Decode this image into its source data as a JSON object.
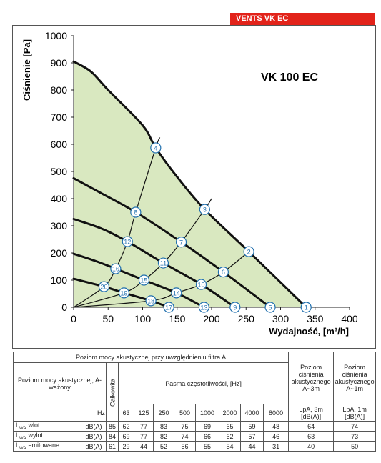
{
  "chart_data": {
    "type": "line",
    "brand": "VENTS VK EC",
    "model": "VK 100 EC",
    "ylabel": "Ciśnienie [Pa]",
    "xlabel": "Wydajność, [m³/h]",
    "xlim": [
      0,
      400
    ],
    "xticks": [
      0,
      50,
      100,
      150,
      200,
      250,
      300,
      350,
      400
    ],
    "ylim": [
      0,
      1000
    ],
    "yticks": [
      0,
      100,
      200,
      300,
      400,
      500,
      600,
      700,
      800,
      900,
      1000
    ],
    "grid": false,
    "color": "#111111",
    "fill_color": "#d9e8c0",
    "marker_color": "#1f6fae",
    "series": [
      {
        "x": [
          0,
          25,
          50,
          100,
          119,
          150,
          190,
          254,
          337
        ],
        "y": [
          905,
          868,
          800,
          670,
          587,
          480,
          360,
          205,
          0
        ]
      },
      {
        "x": [
          0,
          40,
          90,
          156,
          217,
          285
        ],
        "y": [
          475,
          420,
          350,
          240,
          130,
          0
        ]
      },
      {
        "x": [
          0,
          40,
          78,
          130,
          185,
          234
        ],
        "y": [
          325,
          290,
          242,
          163,
          84,
          0
        ]
      },
      {
        "x": [
          0,
          30,
          61,
          102,
          149,
          189
        ],
        "y": [
          197,
          172,
          142,
          100,
          53,
          0
        ]
      },
      {
        "x": [
          0,
          44,
          73,
          112,
          138
        ],
        "y": [
          105,
          76,
          53,
          24,
          0
        ]
      }
    ],
    "system_curves": [
      {
        "x": [
          0,
          44,
          61,
          78,
          90,
          119,
          125
        ],
        "y": [
          0,
          76,
          142,
          242,
          350,
          587,
          625
        ]
      },
      {
        "x": [
          0,
          73,
          102,
          130,
          156,
          190,
          200
        ],
        "y": [
          0,
          53,
          100,
          163,
          240,
          360,
          400
        ]
      },
      {
        "x": [
          0,
          112,
          149,
          185,
          217,
          254,
          258
        ],
        "y": [
          0,
          24,
          53,
          84,
          130,
          205,
          215
        ]
      }
    ],
    "points": [
      {
        "label": "1",
        "x": 337,
        "y": 0
      },
      {
        "label": "2",
        "x": 254,
        "y": 205
      },
      {
        "label": "3",
        "x": 190,
        "y": 360
      },
      {
        "label": "4",
        "x": 119,
        "y": 587
      },
      {
        "label": "5",
        "x": 285,
        "y": 0
      },
      {
        "label": "6",
        "x": 217,
        "y": 130
      },
      {
        "label": "7",
        "x": 156,
        "y": 240
      },
      {
        "label": "8",
        "x": 90,
        "y": 350
      },
      {
        "label": "9",
        "x": 234,
        "y": 0
      },
      {
        "label": "10",
        "x": 185,
        "y": 84
      },
      {
        "label": "11",
        "x": 130,
        "y": 163
      },
      {
        "label": "12",
        "x": 78,
        "y": 242
      },
      {
        "label": "13",
        "x": 189,
        "y": 0
      },
      {
        "label": "14",
        "x": 149,
        "y": 53
      },
      {
        "label": "15",
        "x": 102,
        "y": 100
      },
      {
        "label": "16",
        "x": 61,
        "y": 142
      },
      {
        "label": "17",
        "x": 138,
        "y": 0
      },
      {
        "label": "18",
        "x": 112,
        "y": 24
      },
      {
        "label": "19",
        "x": 73,
        "y": 53
      },
      {
        "label": "20",
        "x": 44,
        "y": 76
      }
    ]
  },
  "table": {
    "title": "Poziom mocy akustycznej przy uwzględnieniu filtra A",
    "pressure_3m": "Poziom ciśnienia akustycznego A~3m",
    "pressure_1m": "Poziom ciśnienia akustycznego A~1m",
    "power_label": "Poziom mocy akustycznej, A-ważony",
    "total": "Całkowita",
    "bands_title": "Pasma częstotliwości, [Hz]",
    "unit_hz": "Hz",
    "bands": [
      "63",
      "125",
      "250",
      "500",
      "1000",
      "2000",
      "4000",
      "8000"
    ],
    "lpa_3m": "LpA, 3m [dB(A)]",
    "lpa_1m": "LpA, 1m [dB(A)]",
    "rows": [
      {
        "symbol": "L",
        "sub": "WA",
        "name": "wlot",
        "unit": "dB(A)",
        "total": 85,
        "bands": [
          62,
          77,
          83,
          75,
          69,
          65,
          59,
          48
        ],
        "lpa3": 64,
        "lpa1": 74
      },
      {
        "symbol": "L",
        "sub": "WA",
        "name": "wylot",
        "unit": "dB(A)",
        "total": 84,
        "bands": [
          69,
          77,
          82,
          74,
          66,
          62,
          57,
          46
        ],
        "lpa3": 63,
        "lpa1": 73
      },
      {
        "symbol": "L",
        "sub": "WA",
        "name": "emitowane",
        "unit": "dB(A)",
        "total": 61,
        "bands": [
          29,
          44,
          52,
          56,
          55,
          54,
          44,
          31
        ],
        "lpa3": 40,
        "lpa1": 50
      }
    ]
  }
}
